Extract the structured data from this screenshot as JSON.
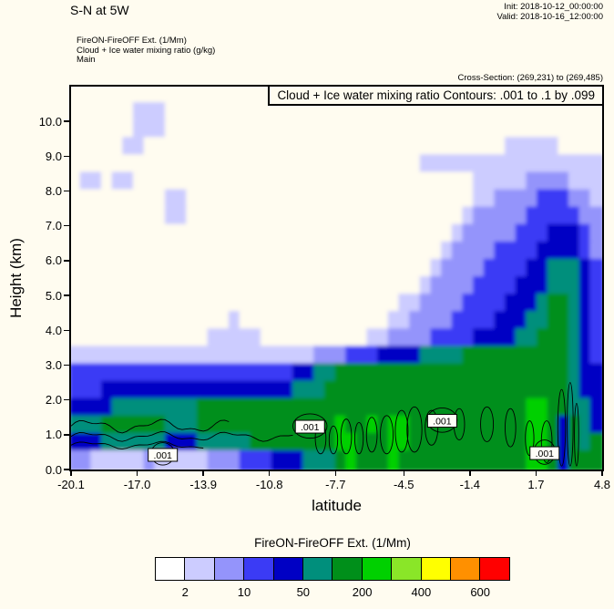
{
  "window": {
    "title": "S-N at 5W"
  },
  "meta": {
    "init": "Init: 2018-10-12_00:00:00",
    "valid": "Valid: 2018-10-16_12:00:00",
    "cross_section": "Cross-Section: (269,231) to (269,485)"
  },
  "legend_block": {
    "line1": "FireON-FireOFF Ext.  (1/Mm)",
    "line2": "Cloud + Ice water mixing ratio  (g/kg)",
    "line3": "Main"
  },
  "axes": {
    "x_title": "latitude",
    "y_title": "Height (km)"
  },
  "chart_data": {
    "type": "heatmap",
    "subtype": "filled-contour-vertical-cross-section",
    "title": "Cloud + Ice water mixing ratio Contours: .001 to .1 by .099",
    "xlabel": "latitude",
    "ylabel": "Height (km)",
    "xlim": [
      -20.1,
      4.8
    ],
    "ylim": [
      0,
      11
    ],
    "background": "#fffcf0",
    "fill_variable": "FireON-FireOFF Ext. (1/Mm)",
    "x_ticks": [
      {
        "value": -20.1,
        "label": "-20.1"
      },
      {
        "value": -17.0,
        "label": "-17.0"
      },
      {
        "value": -13.9,
        "label": "-13.9"
      },
      {
        "value": -10.8,
        "label": "-10.8"
      },
      {
        "value": -7.7,
        "label": "-7.7"
      },
      {
        "value": -4.5,
        "label": "-4.5"
      },
      {
        "value": -1.4,
        "label": "-1.4"
      },
      {
        "value": 1.7,
        "label": "1.7"
      },
      {
        "value": 4.8,
        "label": "4.8"
      }
    ],
    "y_ticks": [
      {
        "value": 0,
        "label": "0.0"
      },
      {
        "value": 1,
        "label": "1.0"
      },
      {
        "value": 2,
        "label": "2.0"
      },
      {
        "value": 3,
        "label": "3.0"
      },
      {
        "value": 4,
        "label": "4.0"
      },
      {
        "value": 5,
        "label": "5.0"
      },
      {
        "value": 6,
        "label": "6.0"
      },
      {
        "value": 7,
        "label": "7.0"
      },
      {
        "value": 8,
        "label": "8.0"
      },
      {
        "value": 9,
        "label": "9.0"
      },
      {
        "value": 10,
        "label": "10.0"
      }
    ],
    "grid": {
      "cols": 50,
      "rows": 22,
      "km_per_row": 0.5,
      "palette": [
        "#fffcf0",
        "#ccccff",
        "#9494fb",
        "#3b3bf5",
        "#0000c4",
        "#008f7c",
        "#008f1a",
        "#00d000"
      ],
      "rows_rle": [
        [
          [
            0,
            50
          ]
        ],
        [
          [
            0,
            6
          ],
          [
            1,
            3
          ],
          [
            0,
            41
          ]
        ],
        [
          [
            0,
            6
          ],
          [
            1,
            3
          ],
          [
            0,
            41
          ]
        ],
        [
          [
            0,
            5
          ],
          [
            1,
            2
          ],
          [
            0,
            34
          ],
          [
            1,
            5
          ],
          [
            0,
            4
          ]
        ],
        [
          [
            0,
            33
          ],
          [
            1,
            17
          ]
        ],
        [
          [
            0,
            1
          ],
          [
            1,
            2
          ],
          [
            0,
            1
          ],
          [
            1,
            2
          ],
          [
            0,
            32
          ],
          [
            1,
            5
          ],
          [
            2,
            4
          ],
          [
            1,
            3
          ]
        ],
        [
          [
            0,
            9
          ],
          [
            1,
            2
          ],
          [
            0,
            27
          ],
          [
            1,
            2
          ],
          [
            2,
            4
          ],
          [
            3,
            3
          ],
          [
            2,
            2
          ],
          [
            1,
            1
          ]
        ],
        [
          [
            0,
            9
          ],
          [
            1,
            2
          ],
          [
            0,
            26
          ],
          [
            1,
            1
          ],
          [
            2,
            5
          ],
          [
            3,
            5
          ],
          [
            2,
            2
          ]
        ],
        [
          [
            0,
            36
          ],
          [
            1,
            1
          ],
          [
            2,
            5
          ],
          [
            3,
            3
          ],
          [
            4,
            3
          ],
          [
            3,
            1
          ],
          [
            2,
            1
          ]
        ],
        [
          [
            0,
            35
          ],
          [
            1,
            1
          ],
          [
            2,
            4
          ],
          [
            3,
            4
          ],
          [
            4,
            4
          ],
          [
            3,
            1
          ],
          [
            2,
            1
          ]
        ],
        [
          [
            0,
            34
          ],
          [
            1,
            1
          ],
          [
            2,
            4
          ],
          [
            3,
            4
          ],
          [
            4,
            2
          ],
          [
            5,
            3
          ],
          [
            4,
            1
          ],
          [
            3,
            1
          ]
        ],
        [
          [
            0,
            33
          ],
          [
            1,
            1
          ],
          [
            2,
            4
          ],
          [
            3,
            4
          ],
          [
            4,
            3
          ],
          [
            5,
            3
          ],
          [
            4,
            1
          ],
          [
            3,
            1
          ]
        ],
        [
          [
            0,
            31
          ],
          [
            1,
            2
          ],
          [
            2,
            4
          ],
          [
            3,
            4
          ],
          [
            4,
            3
          ],
          [
            5,
            1
          ],
          [
            6,
            2
          ],
          [
            5,
            1
          ],
          [
            4,
            1
          ],
          [
            3,
            1
          ]
        ],
        [
          [
            0,
            15
          ],
          [
            1,
            1
          ],
          [
            0,
            14
          ],
          [
            1,
            2
          ],
          [
            2,
            4
          ],
          [
            3,
            4
          ],
          [
            4,
            3
          ],
          [
            5,
            2
          ],
          [
            6,
            2
          ],
          [
            5,
            1
          ],
          [
            4,
            1
          ],
          [
            3,
            1
          ]
        ],
        [
          [
            0,
            13
          ],
          [
            1,
            5
          ],
          [
            0,
            10
          ],
          [
            1,
            2
          ],
          [
            2,
            4
          ],
          [
            3,
            4
          ],
          [
            4,
            4
          ],
          [
            5,
            2
          ],
          [
            6,
            3
          ],
          [
            5,
            1
          ],
          [
            4,
            1
          ],
          [
            3,
            1
          ]
        ],
        [
          [
            1,
            23
          ],
          [
            2,
            3
          ],
          [
            3,
            3
          ],
          [
            4,
            4
          ],
          [
            5,
            4
          ],
          [
            6,
            10
          ],
          [
            5,
            1
          ],
          [
            4,
            1
          ],
          [
            3,
            1
          ]
        ],
        [
          [
            3,
            21
          ],
          [
            4,
            2
          ],
          [
            5,
            2
          ],
          [
            6,
            22
          ],
          [
            5,
            1
          ],
          [
            4,
            2
          ]
        ],
        [
          [
            3,
            3
          ],
          [
            4,
            18
          ],
          [
            5,
            3
          ],
          [
            6,
            23
          ],
          [
            5,
            1
          ],
          [
            4,
            2
          ]
        ],
        [
          [
            4,
            4
          ],
          [
            5,
            8
          ],
          [
            6,
            31
          ],
          [
            7,
            2
          ],
          [
            6,
            2
          ],
          [
            5,
            2
          ],
          [
            4,
            1
          ]
        ],
        [
          [
            5,
            3
          ],
          [
            6,
            6
          ],
          [
            5,
            3
          ],
          [
            6,
            13
          ],
          [
            7,
            1
          ],
          [
            6,
            2
          ],
          [
            7,
            1
          ],
          [
            6,
            1
          ],
          [
            7,
            2
          ],
          [
            6,
            11
          ],
          [
            7,
            2
          ],
          [
            6,
            1
          ],
          [
            4,
            1
          ],
          [
            6,
            1
          ],
          [
            5,
            1
          ],
          [
            4,
            1
          ]
        ],
        [
          [
            4,
            3
          ],
          [
            5,
            6
          ],
          [
            4,
            3
          ],
          [
            5,
            5
          ],
          [
            6,
            8
          ],
          [
            7,
            2
          ],
          [
            6,
            3
          ],
          [
            7,
            2
          ],
          [
            6,
            11
          ],
          [
            7,
            2
          ],
          [
            6,
            1
          ],
          [
            4,
            1
          ],
          [
            6,
            1
          ],
          [
            5,
            1
          ],
          [
            6,
            1
          ]
        ],
        [
          [
            2,
            2
          ],
          [
            1,
            5
          ],
          [
            2,
            1
          ],
          [
            1,
            5
          ],
          [
            2,
            3
          ],
          [
            3,
            3
          ],
          [
            4,
            3
          ],
          [
            5,
            3
          ],
          [
            6,
            1
          ],
          [
            7,
            1
          ],
          [
            6,
            3
          ],
          [
            7,
            1
          ],
          [
            6,
            1
          ],
          [
            6,
            11
          ],
          [
            7,
            2
          ],
          [
            6,
            1
          ],
          [
            4,
            1
          ],
          [
            6,
            3
          ]
        ]
      ]
    },
    "contour_overlay": {
      "variable": "Cloud + Ice water mixing ratio (g/kg)",
      "levels": [
        0.001,
        0.1
      ],
      "labels": [
        {
          "text": ".001",
          "lat": -15.8,
          "km": 0.42
        },
        {
          "text": ".001",
          "lat": -8.9,
          "km": 1.23
        },
        {
          "text": ".001",
          "lat": -2.7,
          "km": 1.4
        },
        {
          "text": ".001",
          "lat": 2.1,
          "km": 0.47
        }
      ],
      "polylines": [
        {
          "km": 1.25,
          "from": -20.1,
          "to": -12.6,
          "amp": 0.14
        },
        {
          "km": 0.95,
          "from": -20.1,
          "to": -9.6,
          "amp": 0.1
        },
        {
          "km": 0.7,
          "from": -20.1,
          "to": -13.8,
          "amp": 0.08
        }
      ],
      "loops": [
        [
          -8.4,
          0.9,
          0.25,
          0.45
        ],
        [
          -7.8,
          0.85,
          0.2,
          0.4
        ],
        [
          -7.2,
          0.95,
          0.25,
          0.5
        ],
        [
          -6.6,
          0.9,
          0.2,
          0.45
        ],
        [
          -6.0,
          1.0,
          0.25,
          0.5
        ],
        [
          -5.3,
          1.0,
          0.3,
          0.55
        ],
        [
          -4.6,
          1.1,
          0.3,
          0.6
        ],
        [
          -4.0,
          1.15,
          0.35,
          0.65
        ],
        [
          -3.2,
          1.2,
          0.3,
          0.5
        ],
        [
          -1.9,
          1.3,
          0.25,
          0.45
        ],
        [
          -0.6,
          1.3,
          0.3,
          0.5
        ],
        [
          0.5,
          1.2,
          0.25,
          0.55
        ],
        [
          1.4,
          0.9,
          0.2,
          0.5
        ],
        [
          2.2,
          0.8,
          0.25,
          0.6
        ],
        [
          2.9,
          1.2,
          0.18,
          1.1
        ],
        [
          3.3,
          1.3,
          0.14,
          1.2
        ],
        [
          3.6,
          1.0,
          0.1,
          0.9
        ],
        [
          -15.8,
          0.45,
          0.55,
          0.32
        ],
        [
          2.1,
          0.5,
          0.5,
          0.35
        ],
        [
          -8.9,
          1.25,
          0.8,
          0.35
        ],
        [
          -2.7,
          1.42,
          0.7,
          0.35
        ]
      ]
    },
    "colorbar": {
      "title": "FireON-FireOFF Ext.  (1/Mm)",
      "colors": [
        "#ffffff",
        "#ccccff",
        "#9494fb",
        "#3b3bf5",
        "#0000c4",
        "#008f7c",
        "#008f1a",
        "#00d000",
        "#8ae628",
        "#ffff00",
        "#ff9000",
        "#ff0000"
      ],
      "tick_labels": [
        "2",
        "10",
        "50",
        "200",
        "400",
        "600"
      ],
      "tick_boundaries": [
        1,
        3,
        5,
        7,
        9,
        11
      ]
    }
  }
}
